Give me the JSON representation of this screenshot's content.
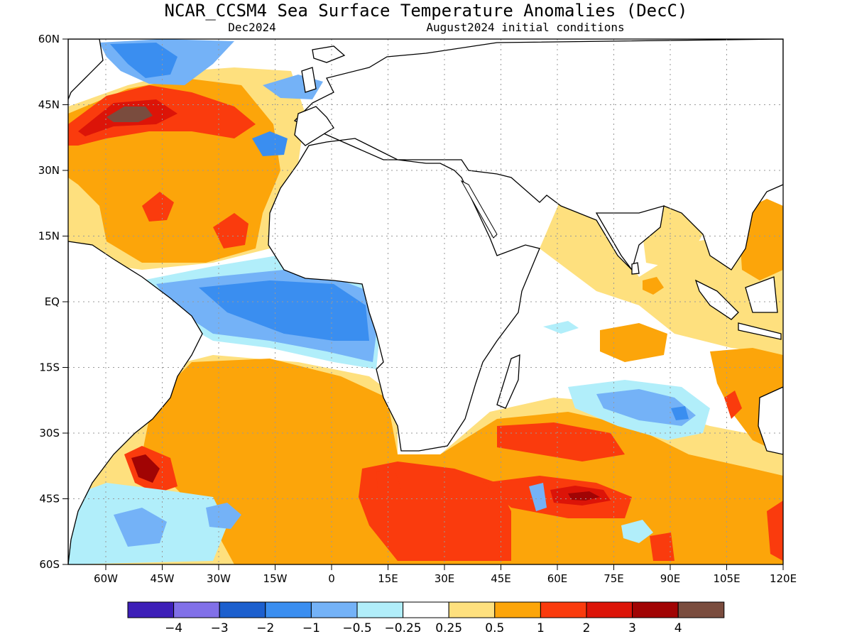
{
  "title": "NCAR_CCSM4 Sea Surface Temperature Anomalies (DecC)",
  "subtitle_left": "Dec2024",
  "subtitle_right": "August2024 initial conditions",
  "map": {
    "lon_range": [
      -70,
      120
    ],
    "lat_range": [
      -60,
      60
    ],
    "lat_ticks": [
      {
        "value": 60,
        "label": "60N"
      },
      {
        "value": 45,
        "label": "45N"
      },
      {
        "value": 30,
        "label": "30N"
      },
      {
        "value": 15,
        "label": "15N"
      },
      {
        "value": 0,
        "label": "EQ"
      },
      {
        "value": -15,
        "label": "15S"
      },
      {
        "value": -30,
        "label": "30S"
      },
      {
        "value": -45,
        "label": "45S"
      },
      {
        "value": -60,
        "label": "60S"
      }
    ],
    "lon_ticks": [
      {
        "value": -60,
        "label": "60W"
      },
      {
        "value": -45,
        "label": "45W"
      },
      {
        "value": -30,
        "label": "30W"
      },
      {
        "value": -15,
        "label": "15W"
      },
      {
        "value": 0,
        "label": "0"
      },
      {
        "value": 15,
        "label": "15E"
      },
      {
        "value": 30,
        "label": "30E"
      },
      {
        "value": 45,
        "label": "45E"
      },
      {
        "value": 60,
        "label": "60E"
      },
      {
        "value": 75,
        "label": "75E"
      },
      {
        "value": 90,
        "label": "90E"
      },
      {
        "value": 105,
        "label": "105E"
      },
      {
        "value": 120,
        "label": "120E"
      }
    ],
    "grid": "dotted"
  },
  "colorbar": {
    "colors": [
      "#3d1fb8",
      "#8170e8",
      "#1c5fce",
      "#3a8ef0",
      "#74b2f7",
      "#b1eefa",
      "#ffffff",
      "#fee07e",
      "#fca50a",
      "#fa3b0d",
      "#dc1408",
      "#a10404",
      "#7a4c3e"
    ],
    "labels": [
      "−4",
      "−3",
      "−2",
      "−1",
      "−0.5",
      "−0.25",
      "0.25",
      "0.5",
      "1",
      "2",
      "3",
      "4"
    ]
  }
}
